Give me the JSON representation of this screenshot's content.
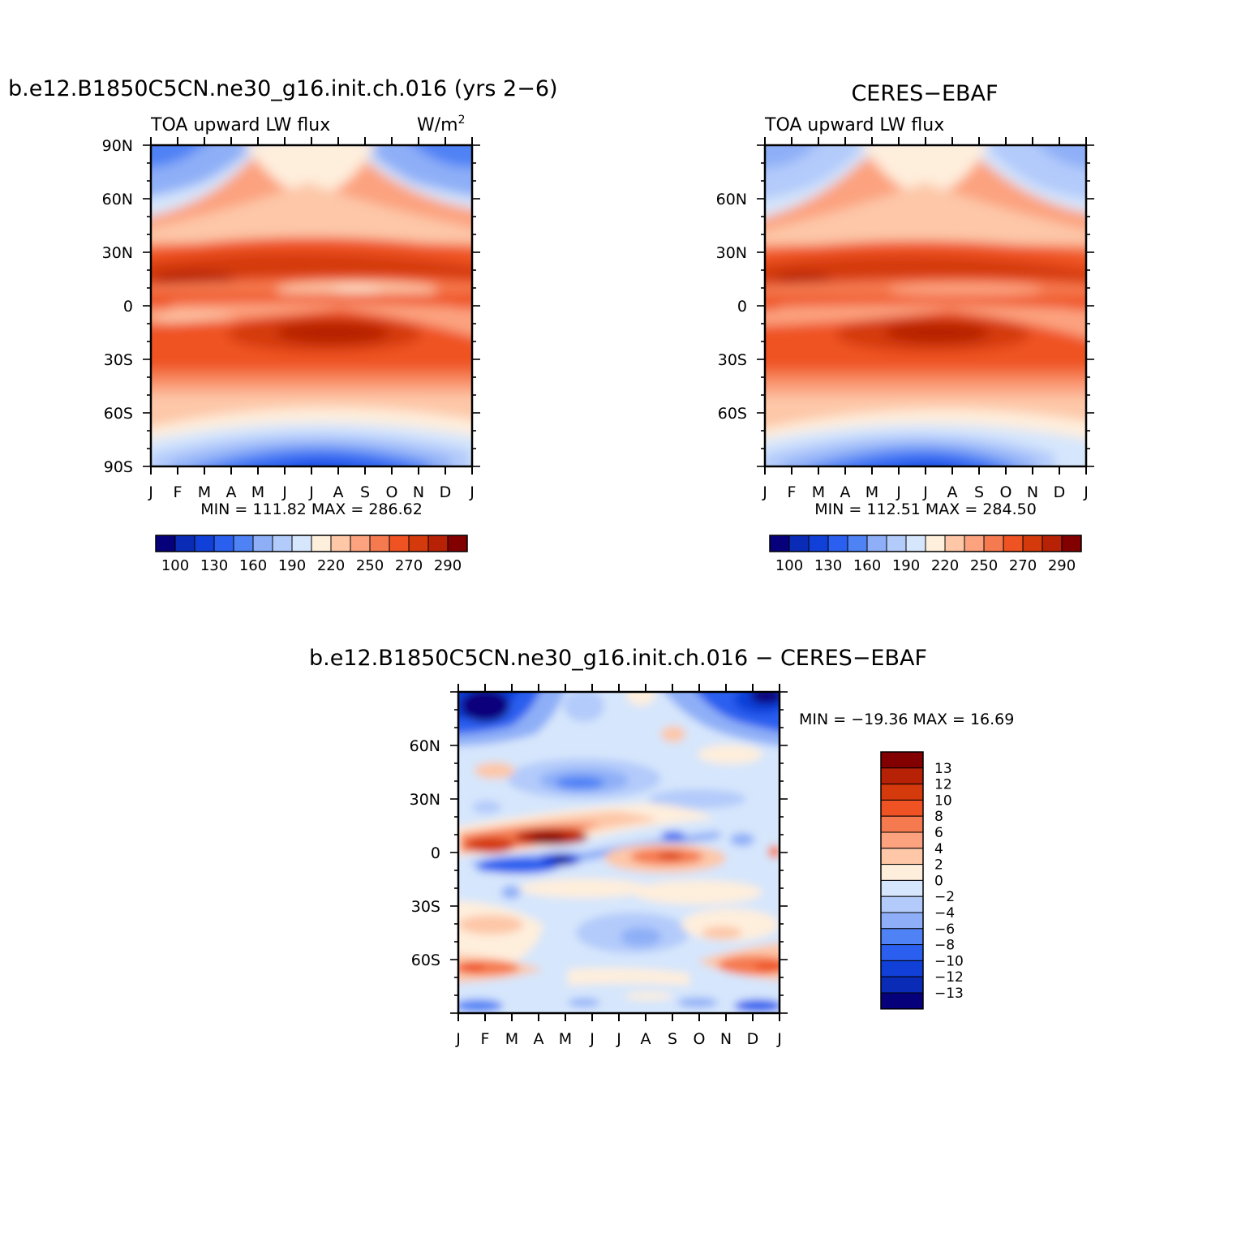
{
  "panels": [
    {
      "id": "model",
      "title": "b.e12.B1850C5CN.ne30_g16.init.ch.016 (yrs 2−6)",
      "left_subtitle": "TOA upward LW flux",
      "units_base": "W/m",
      "units_exp": "2",
      "min_max": "MIN = 111.82  MAX = 286.62"
    },
    {
      "id": "obs",
      "title": "CERES−EBAF",
      "left_subtitle": "TOA upward LW flux",
      "min_max": "MIN = 112.51  MAX = 284.50"
    },
    {
      "id": "diff",
      "title": "b.e12.B1850C5CN.ne30_g16.init.ch.016  −  CERES−EBAF",
      "min_max": "MIN = −19.36  MAX =   16.69"
    }
  ],
  "chart_data": [
    {
      "type": "heatmap",
      "panel": "model",
      "title": "b.e12.B1850C5CN.ne30_g16.init.ch.016 (yrs 2−6)",
      "variable": "TOA upward LW flux",
      "units": "W/m2",
      "x_ticks": [
        "J",
        "F",
        "M",
        "A",
        "M",
        "J",
        "J",
        "A",
        "S",
        "O",
        "N",
        "D",
        "J"
      ],
      "y_ticks": [
        "90N",
        "60N",
        "30N",
        "0",
        "30S",
        "60S",
        "90S"
      ],
      "ylim": [
        -90,
        90
      ],
      "min": 111.82,
      "max": 286.62
    },
    {
      "type": "heatmap",
      "panel": "obs",
      "title": "CERES−EBAF",
      "variable": "TOA upward LW flux",
      "units": "W/m2",
      "x_ticks": [
        "J",
        "F",
        "M",
        "A",
        "M",
        "J",
        "J",
        "A",
        "S",
        "O",
        "N",
        "D",
        "J"
      ],
      "y_ticks": [
        "60N",
        "30N",
        "0",
        "30S",
        "60S"
      ],
      "ylim": [
        -90,
        90
      ],
      "min": 112.51,
      "max": 284.5
    },
    {
      "type": "heatmap",
      "panel": "diff",
      "title": "b.e12.B1850C5CN.ne30_g16.init.ch.016 − CERES−EBAF",
      "x_ticks": [
        "J",
        "F",
        "M",
        "A",
        "M",
        "J",
        "J",
        "A",
        "S",
        "O",
        "N",
        "D",
        "J"
      ],
      "y_ticks": [
        "60N",
        "30N",
        "0",
        "30S",
        "60S"
      ],
      "ylim": [
        -90,
        90
      ],
      "min": -19.36,
      "max": 16.69
    }
  ],
  "colorbars": {
    "abs": {
      "colors": [
        "#07007b",
        "#0a2bb5",
        "#1140d9",
        "#2a5fef",
        "#4f82f5",
        "#8eaff7",
        "#b3cbfb",
        "#d6e6fc",
        "#feeedc",
        "#fdc7a8",
        "#fca27f",
        "#f57a50",
        "#ef5223",
        "#d43a0c",
        "#b72106",
        "#820000"
      ],
      "labels": [
        "100",
        "130",
        "160",
        "190",
        "220",
        "250",
        "270",
        "290"
      ]
    },
    "diff": {
      "colors": [
        "#820000",
        "#b72106",
        "#d43a0c",
        "#ef5223",
        "#f57a50",
        "#fca27f",
        "#fdc7a8",
        "#feeedc",
        "#d6e6fc",
        "#b3cbfb",
        "#8eaff7",
        "#4f82f5",
        "#2a5fef",
        "#1140d9",
        "#0a2bb5",
        "#07007b"
      ],
      "labels": [
        "13",
        "12",
        "10",
        "8",
        "6",
        "4",
        "2",
        "0",
        "−2",
        "−4",
        "−6",
        "−8",
        "−10",
        "−12",
        "−13"
      ]
    }
  }
}
